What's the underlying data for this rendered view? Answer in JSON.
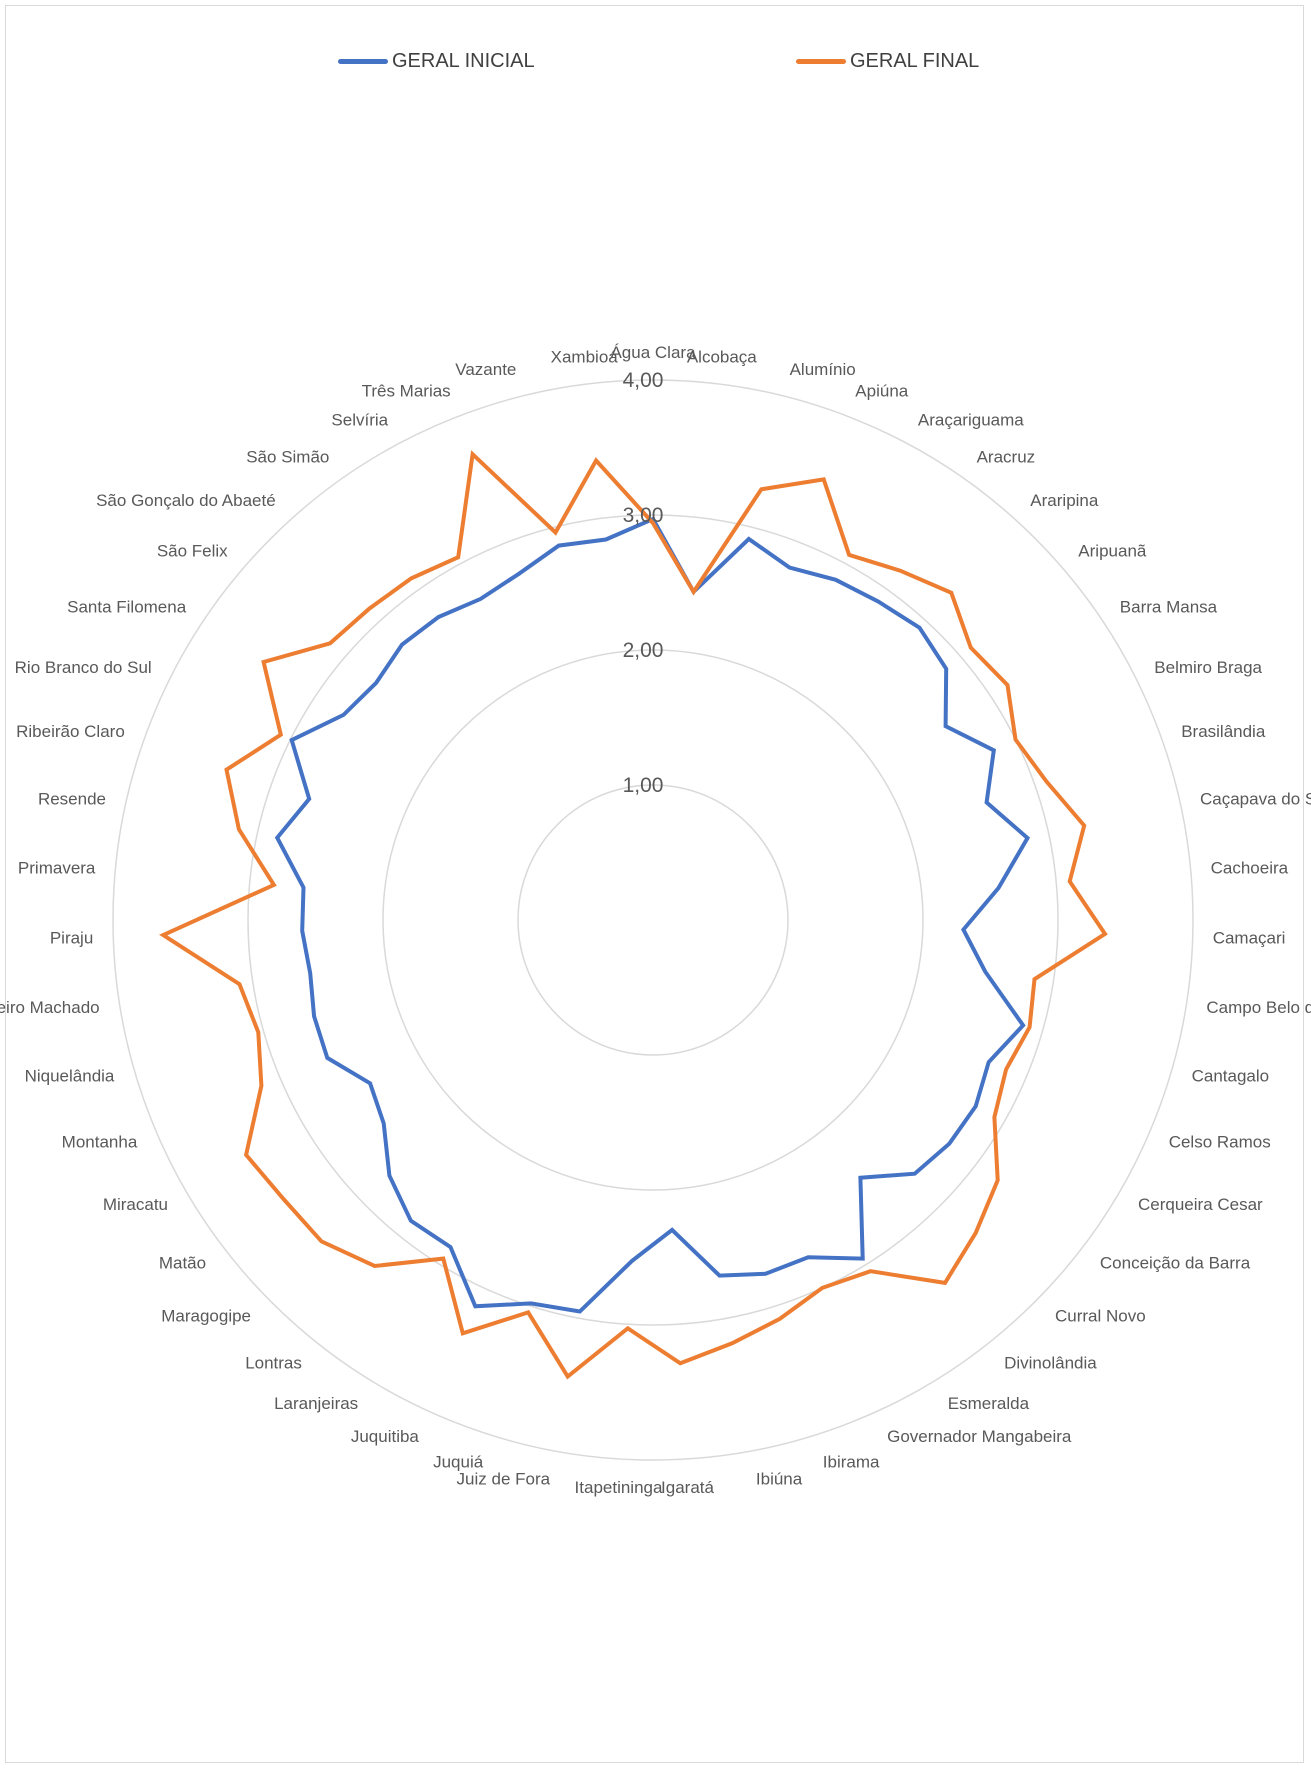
{
  "chart_data": {
    "type": "radar",
    "title": "",
    "legend": {
      "position": "top"
    },
    "rmin": 0.0,
    "rmax": 4.0,
    "ticks": [
      {
        "value": 1,
        "label": "1,00"
      },
      {
        "value": 2,
        "label": "2,00"
      },
      {
        "value": 3,
        "label": "3,00"
      },
      {
        "value": 4,
        "label": "4,00"
      }
    ],
    "categories": [
      "Água Clara",
      "Alcobaça",
      "Alumínio",
      "Apiúna",
      "Araçariguama",
      "Aracruz",
      "Araripina",
      "Aripuanã",
      "Barra Mansa",
      "Belmiro Braga",
      "Brasilândia",
      "Caçapava do Sul",
      "Cachoeira",
      "Camaçari",
      "Campo Belo do Sul",
      "Cantagalo",
      "Celso Ramos",
      "Cerqueira Cesar",
      "Conceição da Barra",
      "Curral Novo",
      "Divinolândia",
      "Esmeralda",
      "Governador Mangabeira",
      "Ibirama",
      "Ibiúna",
      "Igaratá",
      "Itapetininga",
      "Juiz de Fora",
      "Juquiá",
      "Juquitiba",
      "Laranjeiras",
      "Lontras",
      "Maragogipe",
      "Matão",
      "Miracatu",
      "Montanha",
      "Niquelândia",
      "Pinheiro Machado",
      "Piraju",
      "Primavera",
      "Resende",
      "Ribeirão Claro",
      "Rio Branco do Sul",
      "Santa Filomena",
      "São Felix",
      "São Gonçalo do Abaeté",
      "São Simão",
      "Selvíria",
      "Três Marias",
      "Vazante",
      "Xambioá"
    ],
    "series": [
      {
        "name": "GERAL INICIAL",
        "color": "#4472C4",
        "values": [
          2.97,
          2.45,
          2.91,
          2.8,
          2.86,
          2.89,
          2.93,
          2.86,
          2.6,
          2.82,
          2.62,
          2.84,
          2.57,
          2.3,
          2.49,
          2.85,
          2.7,
          2.76,
          2.75,
          2.7,
          2.45,
          2.95,
          2.75,
          2.75,
          2.68,
          2.3,
          2.53,
          2.95,
          2.98,
          3.15,
          2.85,
          2.86,
          2.72,
          2.5,
          2.42,
          2.62,
          2.61,
          2.57,
          2.6,
          2.6,
          2.85,
          2.7,
          2.99,
          2.75,
          2.7,
          2.76,
          2.75,
          2.7,
          2.75,
          2.86,
          2.84
        ]
      },
      {
        "name": "GERAL FINAL",
        "color": "#ED7D31",
        "values": [
          2.94,
          2.45,
          3.29,
          3.5,
          3.07,
          3.17,
          3.28,
          3.1,
          3.15,
          3.0,
          3.09,
          3.27,
          3.1,
          3.35,
          2.86,
          2.9,
          2.84,
          2.92,
          3.2,
          3.33,
          3.45,
          3.06,
          3.0,
          3.1,
          3.19,
          3.29,
          3.03,
          3.44,
          3.05,
          3.37,
          2.95,
          3.29,
          3.42,
          3.43,
          3.48,
          3.15,
          3.04,
          3.1,
          3.63,
          2.82,
          3.14,
          3.35,
          3.08,
          3.46,
          3.15,
          3.12,
          3.1,
          3.05,
          3.7,
          2.96,
          3.43
        ]
      }
    ]
  }
}
